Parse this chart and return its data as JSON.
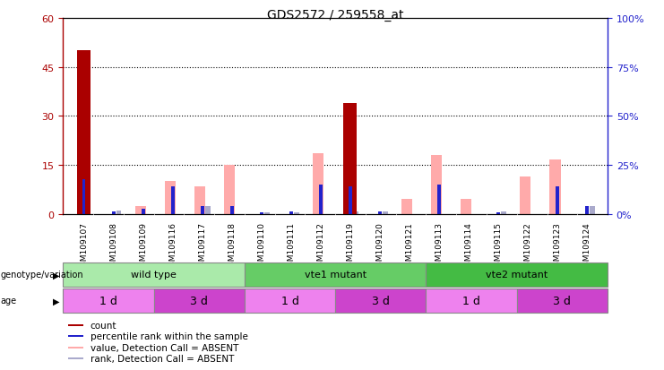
{
  "title": "GDS2572 / 259558_at",
  "samples": [
    "GSM109107",
    "GSM109108",
    "GSM109109",
    "GSM109116",
    "GSM109117",
    "GSM109118",
    "GSM109110",
    "GSM109111",
    "GSM109112",
    "GSM109119",
    "GSM109120",
    "GSM109121",
    "GSM109113",
    "GSM109114",
    "GSM109115",
    "GSM109122",
    "GSM109123",
    "GSM109124"
  ],
  "count": [
    50,
    0,
    0,
    0,
    0,
    0,
    0,
    0,
    0,
    34,
    0,
    0,
    0,
    0,
    0,
    0,
    0,
    0
  ],
  "percentile_rank": [
    18,
    1.5,
    3,
    14,
    4,
    4,
    1,
    1.5,
    15,
    14,
    1.5,
    0,
    15,
    0,
    1,
    0,
    14,
    4
  ],
  "value_absent": [
    0,
    0,
    4,
    17,
    14,
    25,
    0,
    0,
    31,
    0,
    0,
    8,
    30,
    8,
    0,
    19,
    28,
    0
  ],
  "rank_absent": [
    0,
    2,
    0,
    0,
    4,
    0,
    1,
    1,
    0,
    1.5,
    1.5,
    0,
    0,
    0,
    1.5,
    0,
    0,
    4
  ],
  "ylim_left": [
    0,
    60
  ],
  "ylim_right": [
    0,
    100
  ],
  "yticks_left": [
    0,
    15,
    30,
    45,
    60
  ],
  "yticks_right": [
    0,
    25,
    50,
    75,
    100
  ],
  "ytick_labels_left": [
    "0",
    "15",
    "30",
    "45",
    "60"
  ],
  "ytick_labels_right": [
    "0%",
    "25%",
    "50%",
    "75%",
    "100%"
  ],
  "groups": [
    {
      "label": "wild type",
      "start": 0,
      "end": 6,
      "color": "#AAEAAA"
    },
    {
      "label": "vte1 mutant",
      "start": 6,
      "end": 12,
      "color": "#66CC66"
    },
    {
      "label": "vte2 mutant",
      "start": 12,
      "end": 18,
      "color": "#44BB44"
    }
  ],
  "age_groups": [
    {
      "label": "1 d",
      "start": 0,
      "end": 3,
      "color": "#EE82EE"
    },
    {
      "label": "3 d",
      "start": 3,
      "end": 6,
      "color": "#CC44CC"
    },
    {
      "label": "1 d",
      "start": 6,
      "end": 9,
      "color": "#EE82EE"
    },
    {
      "label": "3 d",
      "start": 9,
      "end": 12,
      "color": "#CC44CC"
    },
    {
      "label": "1 d",
      "start": 12,
      "end": 15,
      "color": "#EE82EE"
    },
    {
      "label": "3 d",
      "start": 15,
      "end": 18,
      "color": "#CC44CC"
    }
  ],
  "color_count": "#AA0000",
  "color_rank": "#2222CC",
  "color_value_absent": "#FFAAAA",
  "color_rank_absent": "#AAAACC",
  "legend_items": [
    {
      "color": "#AA0000",
      "label": "count"
    },
    {
      "color": "#2222CC",
      "label": "percentile rank within the sample"
    },
    {
      "color": "#FFAAAA",
      "label": "value, Detection Call = ABSENT"
    },
    {
      "color": "#AAAACC",
      "label": "rank, Detection Call = ABSENT"
    }
  ]
}
